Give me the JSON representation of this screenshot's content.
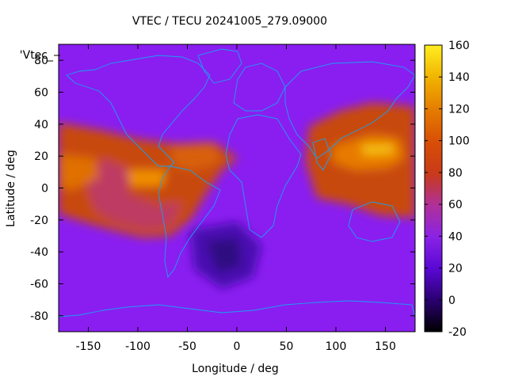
{
  "chart_data": {
    "type": "heatmap",
    "title": "VTEC / TECU 20241005_279.09000",
    "xlabel": "Longitude / deg",
    "ylabel": "Latitude / deg",
    "series_key": "'Vtec_",
    "xlim": [
      -180,
      180
    ],
    "ylim": [
      -90,
      90
    ],
    "x_ticks": [
      -150,
      -100,
      -50,
      0,
      50,
      100,
      150
    ],
    "y_ticks": [
      -80,
      -60,
      -40,
      -20,
      0,
      20,
      40,
      60,
      80
    ],
    "colorbar": {
      "range": [
        -20,
        160
      ],
      "ticks": [
        -20,
        0,
        20,
        40,
        60,
        80,
        100,
        120,
        140,
        160
      ]
    },
    "features": [
      {
        "lon": 140,
        "lat": 22,
        "value": 140
      },
      {
        "lon": -110,
        "lat": 5,
        "value": 110
      },
      {
        "lon": -60,
        "lat": 20,
        "value": 105
      },
      {
        "lon": -20,
        "lat": -40,
        "value": 20
      }
    ]
  }
}
